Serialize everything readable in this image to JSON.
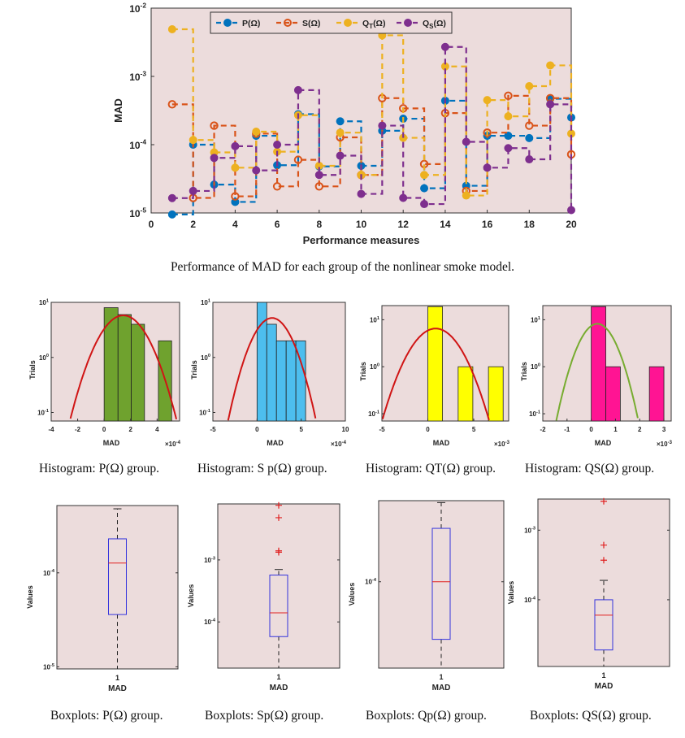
{
  "main_caption": "Performance of MAD for each group of the nonlinear smoke model.",
  "hist_captions": [
    "Histogram: P(Ω)  group.",
    "Histogram: S p(Ω)  group.",
    "Histogram: QT(Ω)  group.",
    "Histogram: QS(Ω)  group."
  ],
  "box_captions": [
    "Boxplots: P(Ω)  group.",
    "Boxplots: Sp(Ω)  group.",
    "Boxplots: Qp(Ω)  group.",
    "Boxplots: QS(Ω)  group."
  ],
  "colors": {
    "plot_background": "#ecdcdc"
  },
  "chart_data": [
    {
      "type": "line",
      "style": "stairs",
      "xlabel": "Performance measures",
      "ylabel": "MAD",
      "xlim": [
        0,
        20
      ],
      "ylim": [
        1e-05,
        0.01
      ],
      "yscale": "log",
      "xticks": [
        0,
        2,
        4,
        6,
        8,
        10,
        12,
        14,
        16,
        18,
        20
      ],
      "yticks": [
        -5,
        -4,
        -3,
        -2
      ],
      "grid": false,
      "legend_position": "top",
      "x": [
        1,
        2,
        3,
        4,
        5,
        6,
        7,
        8,
        9,
        10,
        11,
        12,
        13,
        14,
        15,
        16,
        17,
        18,
        19,
        20
      ],
      "series": [
        {
          "name": "P(Ω)",
          "color": "#0072BD",
          "marker": "filled",
          "values": [
            9.5e-06,
            0.0001,
            2.6e-05,
            1.45e-05,
            0.000135,
            5e-05,
            0.00028,
            4.8e-05,
            0.00022,
            4.9e-05,
            0.00016,
            0.00024,
            2.3e-05,
            0.00044,
            2.5e-05,
            0.000135,
            0.000135,
            0.000125,
            0.00047,
            0.00025
          ]
        },
        {
          "name": "S(Ω)",
          "color": "#D95319",
          "marker": "open",
          "values": [
            0.00039,
            1.66e-05,
            0.00019,
            1.75e-05,
            0.000145,
            2.45e-05,
            6e-05,
            2.45e-05,
            0.000128,
            3.6e-05,
            0.00048,
            0.00034,
            5.2e-05,
            0.00029,
            2.1e-05,
            0.00015,
            0.00052,
            0.00019,
            0.00048,
            7.2e-05
          ]
        },
        {
          "name": "Q_T(Ω)",
          "color": "#EDB120",
          "marker": "filled",
          "values": [
            0.0049,
            0.000117,
            7.7e-05,
            4.6e-05,
            0.000155,
            7.9e-05,
            0.00027,
            4.9e-05,
            0.00015,
            3.6e-05,
            0.004,
            0.000126,
            3.6e-05,
            0.0014,
            1.8e-05,
            0.00045,
            0.00026,
            0.00072,
            0.00145,
            0.000145
          ]
        },
        {
          "name": "Q_S(Ω)",
          "color": "#7E2F8E",
          "marker": "filled",
          "values": [
            1.65e-05,
            2.1e-05,
            6.4e-05,
            9.5e-05,
            4.2e-05,
            0.0001,
            0.00063,
            3.6e-05,
            6.9e-05,
            1.9e-05,
            0.00019,
            1.66e-05,
            1.35e-05,
            0.0027,
            0.00011,
            4.6e-05,
            8.9e-05,
            6.1e-05,
            0.00039,
            1.1e-05
          ]
        }
      ]
    },
    {
      "type": "bar",
      "kind": "histogram",
      "xlabel": "MAD",
      "ylabel": "Trials",
      "x_multiplier_exp": -4,
      "xlim": [
        -4,
        5.7
      ],
      "ylim": [
        0.07,
        10
      ],
      "yscale": "log",
      "xticks": [
        -4,
        -2,
        0,
        2,
        4
      ],
      "yticks": [
        -1,
        0,
        1
      ],
      "bar_color": "#6fa22e",
      "bin_edges": [
        0,
        1.05,
        2.05,
        3.05,
        4.1,
        5.1
      ],
      "counts": [
        8,
        6,
        4,
        0,
        2
      ],
      "fit": {
        "mean": 1.45,
        "sigma": 1.36,
        "peak": 5.8,
        "color": "#d01515"
      }
    },
    {
      "type": "bar",
      "kind": "histogram",
      "xlabel": "MAD",
      "ylabel": "Trials",
      "x_multiplier_exp": -4,
      "xlim": [
        -5,
        10
      ],
      "ylim": [
        0.07,
        10
      ],
      "yscale": "log",
      "xticks": [
        -5,
        0,
        5,
        10
      ],
      "yticks": [
        -1,
        0,
        1
      ],
      "bar_color": "#4dbeee",
      "bin_edges": [
        0,
        1.1,
        2.2,
        3.3,
        4.4,
        5.5
      ],
      "counts": [
        10,
        4,
        2,
        2,
        2
      ],
      "fit": {
        "mean": 1.7,
        "sigma": 1.7,
        "peak": 5.2,
        "color": "#d01515"
      }
    },
    {
      "type": "bar",
      "kind": "histogram",
      "xlabel": "MAD",
      "ylabel": "Trials",
      "x_multiplier_exp": -3,
      "xlim": [
        -5,
        8.8
      ],
      "ylim": [
        0.07,
        20
      ],
      "yscale": "log",
      "xticks": [
        -5,
        0,
        5
      ],
      "yticks": [
        -1,
        0,
        1
      ],
      "bar_color": "#ffff00",
      "bin_edges": [
        0,
        1.6,
        3.3,
        4.9,
        6.6,
        8.2
      ],
      "counts": [
        19,
        0,
        1,
        0,
        1
      ],
      "fit": {
        "mean": 0.85,
        "sigma": 1.94,
        "peak": 6.5,
        "color": "#d01515"
      }
    },
    {
      "type": "bar",
      "kind": "histogram",
      "xlabel": "MAD",
      "ylabel": "Trials",
      "x_multiplier_exp": -3,
      "xlim": [
        -2,
        3.3
      ],
      "ylim": [
        0.07,
        20
      ],
      "yscale": "log",
      "xticks": [
        -2,
        -1,
        0,
        1,
        2,
        3
      ],
      "yticks": [
        -1,
        0,
        1
      ],
      "bar_color": "#ff1493",
      "bin_edges": [
        0,
        0.6,
        1.2,
        1.8,
        2.4,
        3.0
      ],
      "counts": [
        19,
        1,
        0,
        0,
        1
      ],
      "fit": {
        "mean": 0.25,
        "sigma": 0.55,
        "peak": 8.2,
        "color": "#77ac30"
      }
    },
    {
      "type": "box",
      "xlabel": "MAD",
      "ylabel": "Values",
      "xtick": "1",
      "ylim": [
        9.5e-06,
        0.00052
      ],
      "yscale": "log",
      "yticks": [
        -5,
        -4
      ],
      "whisker_low": 9.5e-06,
      "q1": 3.6e-05,
      "median": 0.000127,
      "q3": 0.00023,
      "whisker_high": 0.00048,
      "outliers": []
    },
    {
      "type": "box",
      "xlabel": "MAD",
      "ylabel": "Values",
      "xtick": "1",
      "ylim": [
        1.8e-05,
        0.008
      ],
      "yscale": "log",
      "yticks": [
        -4,
        -3
      ],
      "whisker_low": 1.8e-05,
      "q1": 5.8e-05,
      "median": 0.00014,
      "q3": 0.00057,
      "whisker_high": 0.0007,
      "outliers": [
        0.0076,
        0.0048,
        0.0014,
        0.00133
      ]
    },
    {
      "type": "box",
      "xlabel": "MAD",
      "ylabel": "Values",
      "xtick": "1",
      "ylim": [
        1.4e-06,
        0.0055
      ],
      "yscale": "log",
      "yticks": [
        -4
      ],
      "whisker_low": 1.4e-06,
      "q1": 5.8e-06,
      "median": 0.0001,
      "q3": 0.0014,
      "whisker_high": 0.005,
      "outliers": []
    },
    {
      "type": "box",
      "xlabel": "MAD",
      "ylabel": "Values",
      "xtick": "1",
      "ylim": [
        1.1e-05,
        0.0028
      ],
      "yscale": "log",
      "yticks": [
        -4,
        -3
      ],
      "whisker_low": 1.1e-05,
      "q1": 1.9e-05,
      "median": 6e-05,
      "q3": 0.0001,
      "whisker_high": 0.00019,
      "outliers": [
        0.0026,
        0.00061,
        0.00037
      ]
    }
  ]
}
